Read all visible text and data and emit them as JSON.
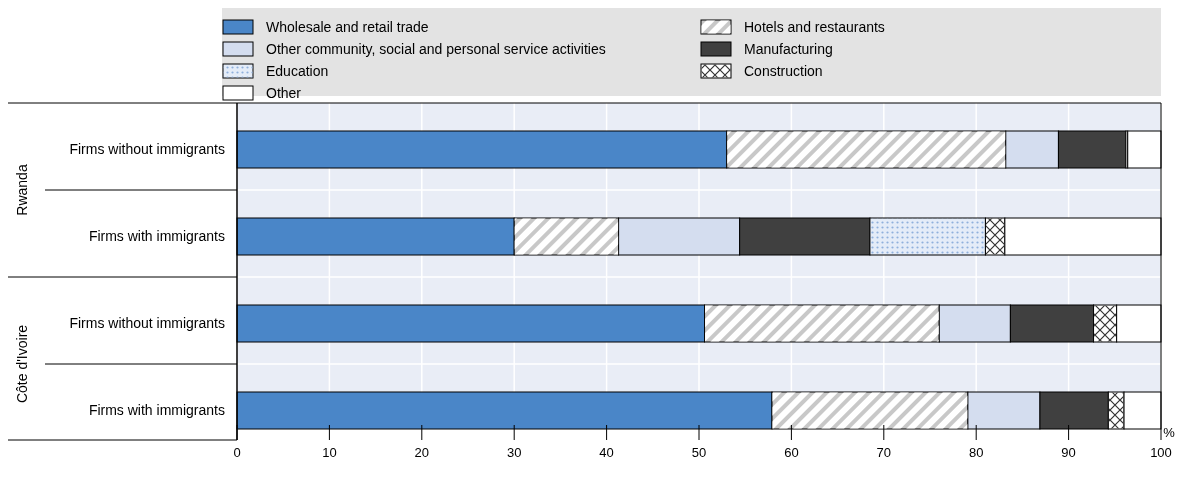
{
  "chart_data": {
    "type": "bar",
    "orientation": "horizontal",
    "stacked": true,
    "categories": [
      "Firms without immigrants",
      "Firms with immigrants",
      "Firms without immigrants",
      "Firms with immigrants"
    ],
    "series": [
      {
        "name": "Wholesale and retail trade",
        "color": "#4a86c8",
        "values": [
          53.0,
          30.0,
          50.6,
          57.9
        ]
      },
      {
        "name": "Hotels and restaurants",
        "color": "#c8c8c8",
        "values": [
          30.2,
          11.3,
          25.4,
          21.2
        ]
      },
      {
        "name": "Other community, social and personal service activities",
        "color": "#d4ddef",
        "values": [
          5.7,
          13.1,
          7.7,
          7.8
        ]
      },
      {
        "name": "Manufacturing",
        "color": "#404040",
        "values": [
          7.3,
          14.1,
          9.0,
          7.4
        ]
      },
      {
        "name": "Education",
        "color": "#e4ecf8",
        "values": [
          0,
          12.5,
          0,
          0
        ]
      },
      {
        "name": "Construction",
        "color": "#ffffff",
        "values": [
          0.2,
          2.1,
          2.5,
          1.7
        ]
      },
      {
        "name": "Other",
        "color": "#ffffff",
        "values": [
          3.6,
          16.9,
          4.8,
          4.0
        ]
      }
    ],
    "xlim": [
      0,
      100
    ],
    "xticks": [
      0,
      10,
      20,
      30,
      40,
      50,
      60,
      70,
      80,
      90,
      100
    ],
    "xlabel": "%",
    "annotations": [
      "Rwanda",
      "Côte d'Ivoire"
    ],
    "grid": true,
    "legend": "top"
  }
}
